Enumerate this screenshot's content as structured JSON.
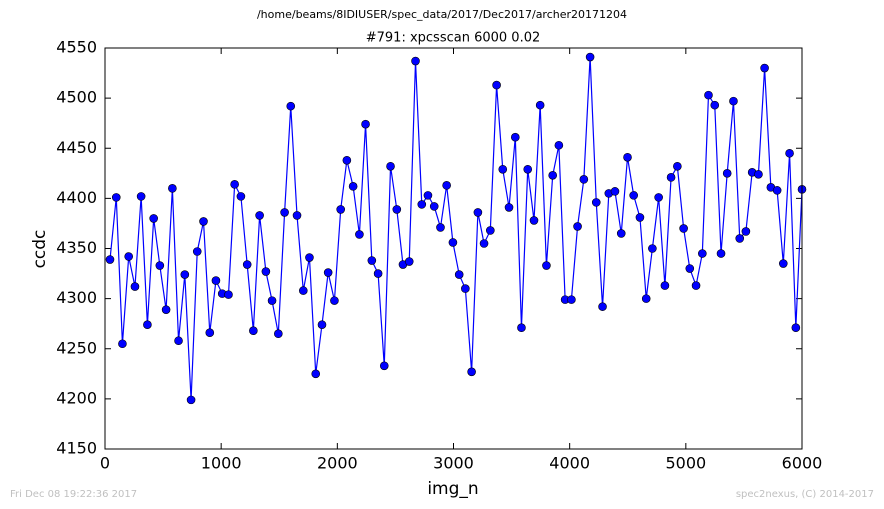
{
  "chart_data": {
    "type": "line",
    "suptitle": "/home/beams/8IDIUSER/spec_data/2017/Dec2017/archer20171204",
    "title": "#791: xpcsscan 6000 0.02",
    "xlabel": "img_n",
    "ylabel": "ccdc",
    "color": "#0000ff",
    "x": [
      43,
      97,
      150,
      204,
      258,
      311,
      365,
      419,
      472,
      526,
      580,
      633,
      687,
      741,
      794,
      848,
      902,
      955,
      1009,
      1063,
      1116,
      1170,
      1224,
      1277,
      1331,
      1385,
      1438,
      1492,
      1546,
      1599,
      1653,
      1707,
      1760,
      1814,
      1868,
      1921,
      1975,
      2029,
      2082,
      2136,
      2190,
      2243,
      2297,
      2351,
      2404,
      2458,
      2512,
      2565,
      2619,
      2673,
      2727,
      2780,
      2834,
      2888,
      2941,
      2995,
      3049,
      3102,
      3156,
      3210,
      3263,
      3317,
      3371,
      3424,
      3478,
      3532,
      3585,
      3639,
      3693,
      3746,
      3800,
      3854,
      3907,
      3961,
      4015,
      4068,
      4122,
      4176,
      4229,
      4283,
      4337,
      4390,
      4444,
      4498,
      4551,
      4605,
      4659,
      4712,
      4766,
      4820,
      4873,
      4927,
      4981,
      5034,
      5088,
      5142,
      5195,
      5249,
      5303,
      5356,
      5410,
      5464,
      5517,
      5571,
      5625,
      5678,
      5732,
      5786,
      5839,
      5893,
      5947,
      6000
    ],
    "values": [
      4339,
      4401,
      4255,
      4342,
      4312,
      4402,
      4274,
      4380,
      4333,
      4289,
      4410,
      4258,
      4324,
      4199,
      4347,
      4377,
      4266,
      4318,
      4305,
      4304,
      4414,
      4402,
      4334,
      4268,
      4383,
      4327,
      4298,
      4265,
      4386,
      4492,
      4383,
      4308,
      4341,
      4225,
      4274,
      4326,
      4298,
      4389,
      4438,
      4412,
      4364,
      4474,
      4338,
      4325,
      4233,
      4432,
      4389,
      4334,
      4337,
      4537,
      4394,
      4403,
      4392,
      4371,
      4413,
      4356,
      4324,
      4310,
      4227,
      4386,
      4355,
      4368,
      4513,
      4429,
      4391,
      4461,
      4271,
      4429,
      4378,
      4493,
      4333,
      4423,
      4453,
      4299,
      4299,
      4372,
      4419,
      4541,
      4396,
      4292,
      4405,
      4407,
      4365,
      4441,
      4403,
      4381,
      4300,
      4350,
      4401,
      4313,
      4421,
      4432,
      4370,
      4330,
      4313,
      4345,
      4503,
      4493,
      4345,
      4425,
      4497,
      4360,
      4367,
      4426,
      4424,
      4530,
      4411,
      4408,
      4335,
      4445,
      4271,
      4409
    ],
    "xlim": [
      0,
      6000
    ],
    "xticks": [
      0,
      1000,
      2000,
      3000,
      4000,
      5000,
      6000
    ],
    "ylim": [
      4150,
      4550
    ],
    "yticks": [
      4150,
      4200,
      4250,
      4300,
      4350,
      4400,
      4450,
      4500,
      4550
    ]
  },
  "footer": {
    "left": "Fri Dec 08 19:22:36 2017",
    "right": "spec2nexus, (C) 2014-2017"
  }
}
